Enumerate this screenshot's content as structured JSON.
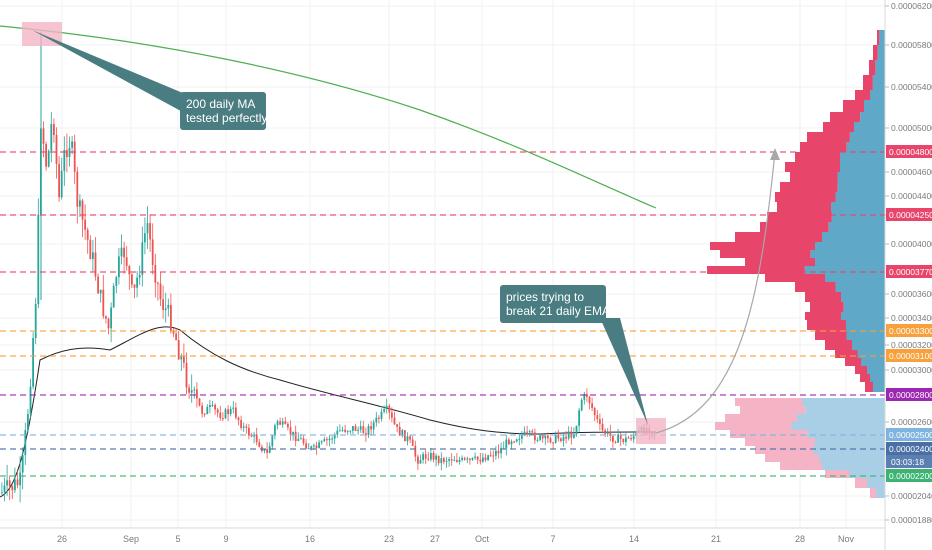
{
  "chart_data": {
    "type": "candlestick",
    "y_axis": {
      "position": "right",
      "ticks": [
        "0.00006200",
        "0.00005800",
        "0.00005400",
        "0.00005000",
        "0.00004600",
        "0.00004400",
        "0.00004200",
        "0.00004000",
        "0.00003600",
        "0.00003400",
        "0.00003200",
        "0.00003000",
        "0.00002600",
        "0.00002040",
        "0.00001880"
      ]
    },
    "x_axis": {
      "ticks": [
        "26",
        "Sep",
        "5",
        "9",
        "16",
        "23",
        "27",
        "Oct",
        "7",
        "14",
        "21",
        "28",
        "Nov"
      ]
    },
    "price_levels": [
      {
        "label": "0.00004800",
        "color": "#e8456b",
        "style": "dashed"
      },
      {
        "label": "0.00004250",
        "color": "#e8456b",
        "style": "dashed"
      },
      {
        "label": "0.00003770",
        "color": "#e8456b",
        "style": "dashed"
      },
      {
        "label": "0.00003300",
        "color": "#f7a03c",
        "style": "dashed"
      },
      {
        "label": "0.00003100",
        "color": "#f7a03c",
        "style": "dashed"
      },
      {
        "label": "0.00002800",
        "color": "#9c27b0",
        "style": "dashed"
      },
      {
        "label": "0.00002500",
        "color": "#7fb3e0",
        "style": "dashed"
      },
      {
        "label": "0.00002400",
        "color": "#4a6fa5",
        "style": "dashed"
      },
      {
        "label": "0.00002200",
        "color": "#3cb371",
        "style": "dashed"
      }
    ],
    "current_price": {
      "time_label": "03:03:18",
      "color": "#5a7fb0"
    },
    "annotations": [
      {
        "lines": [
          "200 daily MA",
          "tested perfectly"
        ]
      },
      {
        "lines": [
          "prices trying to",
          "break 21 daily EMA"
        ]
      }
    ],
    "colors": {
      "up": "#26a69a",
      "down": "#ef5350",
      "ma200": "#4caf50",
      "ema21": "#222222",
      "callout": "#4a7d82",
      "highlight": "#f4b4c6",
      "volume_profile_buy": "#5fa8c7",
      "volume_profile_sell": "#e8456b"
    },
    "grid": true
  }
}
